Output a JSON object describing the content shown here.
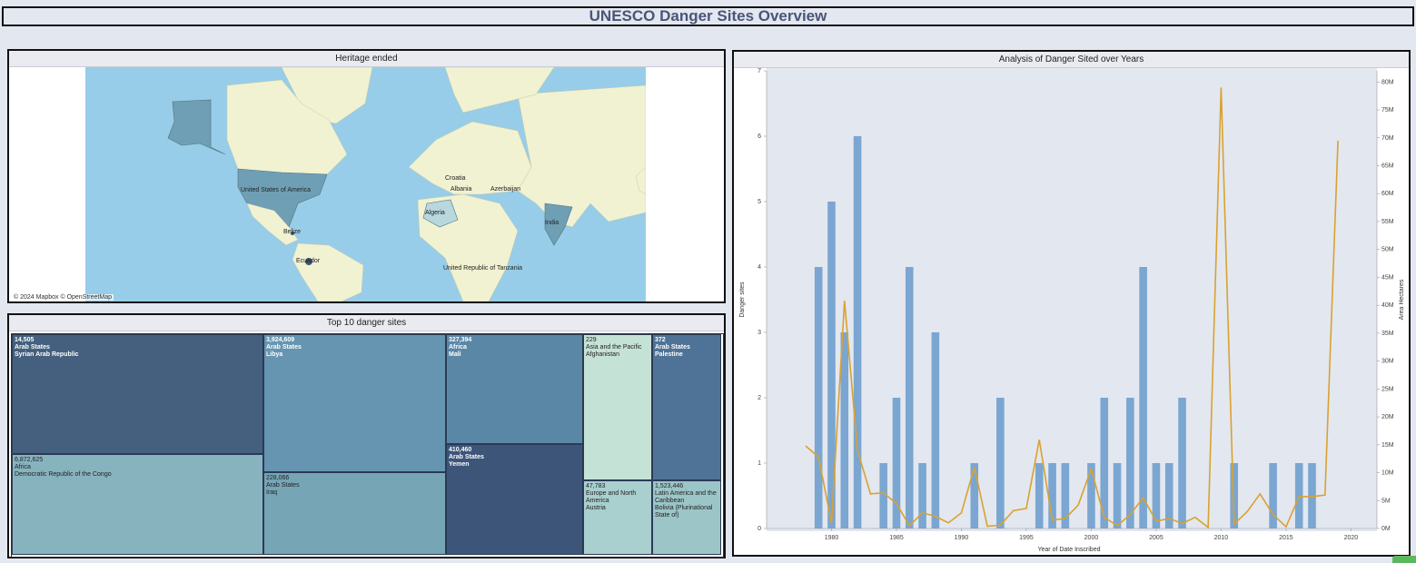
{
  "dashboard_title": "UNESCO Danger Sites Overview",
  "map": {
    "title": "Heritage ended",
    "credit": "© 2024 Mapbox  © OpenStreetMap",
    "highlight_color": "#6f9fb5",
    "countries": [
      {
        "name": "United States of America"
      },
      {
        "name": "Croatia"
      },
      {
        "name": "Albania"
      },
      {
        "name": "Azerbaijan"
      },
      {
        "name": "Algeria"
      },
      {
        "name": "India"
      },
      {
        "name": "Belize"
      },
      {
        "name": "Ecuador"
      },
      {
        "name": "United Republic of Tanzania"
      }
    ]
  },
  "treemap": {
    "title": "Top 10 danger sites",
    "tiles": [
      {
        "value": "14,505",
        "region": "Arab States",
        "country": "Syrian Arab Republic",
        "color": "#44607e",
        "dark": true,
        "bold": true
      },
      {
        "value": "6,872,625",
        "region": "Africa",
        "country": "Democratic Republic of the Congo",
        "color": "#87b3bf",
        "dark": false,
        "bold": false
      },
      {
        "value": "3,924,609",
        "region": "Arab States",
        "country": "Libya",
        "color": "#6595b0",
        "dark": true,
        "bold": true
      },
      {
        "value": "228,066",
        "region": "Arab States",
        "country": "Iraq",
        "color": "#76a5b6",
        "dark": false,
        "bold": false
      },
      {
        "value": "327,394",
        "region": "Africa",
        "country": "Mali",
        "color": "#5b87a7",
        "dark": true,
        "bold": true
      },
      {
        "value": "410,460",
        "region": "Arab States",
        "country": "Yemen",
        "color": "#3d5579",
        "dark": true,
        "bold": true
      },
      {
        "value": "229",
        "region": "Asia and the Pacific",
        "country": "Afghanistan",
        "color": "#c5e2d6",
        "dark": false,
        "bold": false
      },
      {
        "value": "47,783",
        "region": "Europe and North America",
        "country": "Austria",
        "color": "#a9cfcf",
        "dark": false,
        "bold": false
      },
      {
        "value": "372",
        "region": "Arab States",
        "country": "Palestine",
        "color": "#4f7396",
        "dark": true,
        "bold": true
      },
      {
        "value": "1,523,446",
        "region": "Latin America and the Caribbean",
        "country": "Bolivia (Plurinational State of)",
        "color": "#9cc5c8",
        "dark": false,
        "bold": false
      }
    ]
  },
  "chart_data": {
    "type": "bar",
    "title": "Analysis of Danger Sited over Years",
    "xlabel": "Year of Date Inscribed",
    "ylabel": "Danger sites",
    "y2label": "Area Hectares",
    "xlim": [
      1975,
      2022
    ],
    "ylim": [
      0,
      7
    ],
    "y2lim": [
      0,
      82000000
    ],
    "x_ticks": [
      1980,
      1985,
      1990,
      1995,
      2000,
      2005,
      2010,
      2015,
      2020
    ],
    "y_ticks": [
      0,
      1,
      2,
      3,
      4,
      5,
      6,
      7
    ],
    "y2_ticks": [
      "0M",
      "5M",
      "10M",
      "15M",
      "20M",
      "25M",
      "30M",
      "35M",
      "40M",
      "45M",
      "50M",
      "55M",
      "60M",
      "65M",
      "70M",
      "75M",
      "80M"
    ],
    "bar_color": "#7aa6d1",
    "line_color": "#d9a230",
    "bars": {
      "x": [
        1979,
        1980,
        1981,
        1982,
        1984,
        1985,
        1986,
        1987,
        1988,
        1991,
        1993,
        1996,
        1997,
        1998,
        2000,
        2001,
        2002,
        2003,
        2004,
        2005,
        2006,
        2007,
        2011,
        2014,
        2016,
        2017
      ],
      "values": [
        4,
        5,
        3,
        6,
        1,
        2,
        4,
        1,
        3,
        1,
        2,
        1,
        1,
        1,
        1,
        2,
        1,
        2,
        4,
        1,
        1,
        2,
        1,
        1,
        1,
        1
      ]
    },
    "series": [
      {
        "type": "line",
        "x": [
          1978,
          1979,
          1980,
          1981,
          1982,
          1983,
          1984,
          1985,
          1986,
          1987,
          1988,
          1989,
          1990,
          1991,
          1992,
          1993,
          1994,
          1995,
          1996,
          1997,
          1998,
          1999,
          2000,
          2001,
          2002,
          2003,
          2004,
          2005,
          2006,
          2007,
          2008,
          2009,
          2010,
          2011,
          2012,
          2013,
          2014,
          2015,
          2016,
          2017,
          2018,
          2019
        ],
        "values": [
          14800000,
          12800000,
          1000000,
          40800000,
          14000000,
          6200000,
          6400000,
          4500000,
          500000,
          2800000,
          2200000,
          1000000,
          2800000,
          11000000,
          400000,
          600000,
          3200000,
          3600000,
          15900000,
          1500000,
          1800000,
          4200000,
          10700000,
          2000000,
          500000,
          2500000,
          5500000,
          1300000,
          1800000,
          900000,
          2000000,
          200000,
          79000000,
          800000,
          3000000,
          6200000,
          2500000,
          300000,
          5700000,
          5700000,
          6000000,
          69500000
        ]
      }
    ]
  }
}
